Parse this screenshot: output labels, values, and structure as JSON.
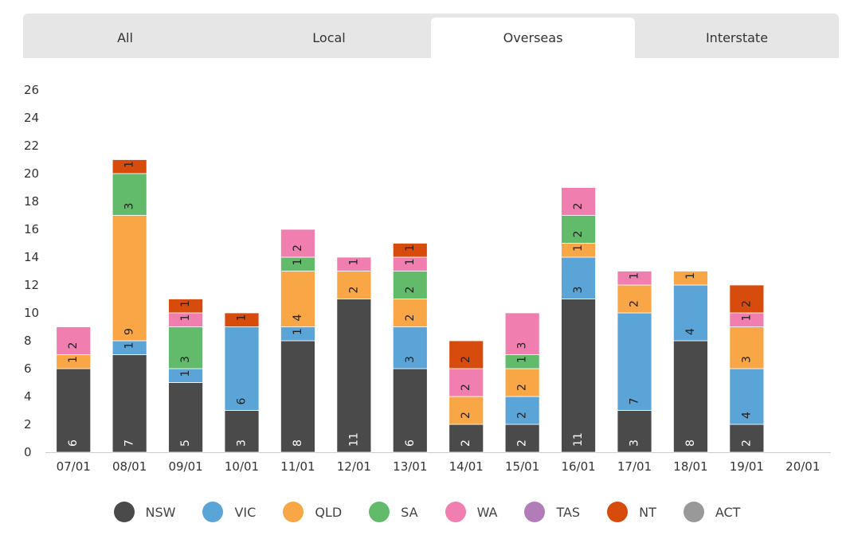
{
  "tabs": [
    {
      "label": "All",
      "active": false
    },
    {
      "label": "Local",
      "active": false
    },
    {
      "label": "Overseas",
      "active": true
    },
    {
      "label": "Interstate",
      "active": false
    }
  ],
  "chart_data": {
    "type": "bar",
    "stacked": true,
    "title": "",
    "xlabel": "",
    "ylabel": "",
    "ylim": [
      0,
      26
    ],
    "yticks": [
      0,
      2,
      4,
      6,
      8,
      10,
      12,
      14,
      16,
      18,
      20,
      22,
      24,
      26
    ],
    "categories": [
      "07/01",
      "08/01",
      "09/01",
      "10/01",
      "11/01",
      "12/01",
      "13/01",
      "14/01",
      "15/01",
      "16/01",
      "17/01",
      "18/01",
      "19/01",
      "20/01"
    ],
    "legend_position": "bottom",
    "series": [
      {
        "name": "NSW",
        "color": "#4a4a4a",
        "values": [
          6,
          7,
          5,
          3,
          8,
          11,
          6,
          2,
          2,
          11,
          3,
          8,
          2,
          0
        ]
      },
      {
        "name": "VIC",
        "color": "#5ba4d8",
        "values": [
          0,
          1,
          1,
          6,
          1,
          0,
          3,
          0,
          2,
          3,
          7,
          4,
          4,
          0
        ]
      },
      {
        "name": "QLD",
        "color": "#f8a646",
        "values": [
          1,
          9,
          0,
          0,
          4,
          2,
          2,
          2,
          2,
          1,
          2,
          1,
          3,
          0
        ]
      },
      {
        "name": "SA",
        "color": "#62bb6a",
        "values": [
          0,
          3,
          3,
          0,
          1,
          0,
          2,
          0,
          1,
          2,
          0,
          0,
          0,
          0
        ]
      },
      {
        "name": "WA",
        "color": "#f07fb0",
        "values": [
          2,
          0,
          1,
          0,
          2,
          1,
          1,
          2,
          3,
          2,
          1,
          0,
          1,
          0
        ]
      },
      {
        "name": "TAS",
        "color": "#b27cb8",
        "values": [
          0,
          0,
          0,
          0,
          0,
          0,
          0,
          0,
          0,
          0,
          0,
          0,
          0,
          0
        ]
      },
      {
        "name": "NT",
        "color": "#d74b0d",
        "values": [
          0,
          1,
          1,
          1,
          0,
          0,
          1,
          2,
          0,
          0,
          0,
          0,
          2,
          0
        ]
      },
      {
        "name": "ACT",
        "color": "#999999",
        "values": [
          0,
          0,
          0,
          0,
          0,
          0,
          0,
          0,
          0,
          0,
          0,
          0,
          0,
          0
        ]
      }
    ]
  }
}
